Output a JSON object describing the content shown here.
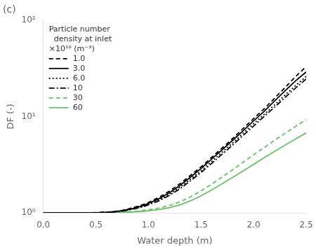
{
  "chart_data": {
    "type": "line",
    "title": "(c)",
    "xlabel": "Water depth (m)",
    "ylabel": "DF (-)",
    "legend_title": "Particle number\n  density at inlet\n×10¹⁰ (m⁻³)",
    "log": "y",
    "grid": false,
    "legend": "upper left",
    "xlim": [
      0.0,
      2.5
    ],
    "ylim": [
      1.0,
      100.0
    ],
    "xticks": [
      {
        "value": 0.0,
        "label": "0.0"
      },
      {
        "value": 0.5,
        "label": "0.5"
      },
      {
        "value": 1.0,
        "label": "1.0"
      },
      {
        "value": 1.5,
        "label": "1.5"
      },
      {
        "value": 2.0,
        "label": "2.0"
      },
      {
        "value": 2.5,
        "label": "2.5"
      }
    ],
    "yticks": [
      {
        "value": 1,
        "label": "10⁰"
      },
      {
        "value": 10,
        "label": "10¹"
      },
      {
        "value": 100,
        "label": "10²"
      }
    ],
    "x": [
      0.0,
      0.1,
      0.2,
      0.3,
      0.4,
      0.5,
      0.55,
      0.6,
      0.65,
      0.7,
      0.75,
      0.8,
      0.85,
      0.9,
      0.95,
      1.0,
      1.1,
      1.2,
      1.3,
      1.4,
      1.5,
      1.6,
      1.7,
      1.8,
      1.9,
      2.0,
      2.1,
      2.2,
      2.3,
      2.4,
      2.5
    ],
    "series": [
      {
        "name": "1.0",
        "color": "#000000",
        "line_style": "dashed",
        "values": [
          1.0,
          1.0,
          1.0,
          1.0,
          1.0,
          1.005,
          1.01,
          1.015,
          1.025,
          1.04,
          1.06,
          1.09,
          1.13,
          1.17,
          1.22,
          1.28,
          1.45,
          1.68,
          2.0,
          2.45,
          3.0,
          3.75,
          4.7,
          5.9,
          7.5,
          9.5,
          12.0,
          15.5,
          20.0,
          26.0,
          33.0
        ]
      },
      {
        "name": "3.0",
        "color": "#000000",
        "line_style": "solid",
        "values": [
          1.0,
          1.0,
          1.0,
          1.0,
          1.0,
          1.003,
          1.007,
          1.013,
          1.022,
          1.035,
          1.055,
          1.08,
          1.11,
          1.15,
          1.19,
          1.25,
          1.4,
          1.62,
          1.92,
          2.35,
          2.88,
          3.6,
          4.5,
          5.65,
          7.1,
          9.0,
          11.3,
          14.5,
          18.5,
          23.5,
          29.0
        ]
      },
      {
        "name": "6.0",
        "color": "#000000",
        "line_style": "dotted",
        "values": [
          1.0,
          1.0,
          1.0,
          1.0,
          1.0,
          1.002,
          1.005,
          1.01,
          1.018,
          1.03,
          1.047,
          1.07,
          1.1,
          1.13,
          1.17,
          1.22,
          1.36,
          1.56,
          1.84,
          2.24,
          2.73,
          3.4,
          4.25,
          5.3,
          6.7,
          8.4,
          10.5,
          13.2,
          16.7,
          21.0,
          26.0
        ]
      },
      {
        "name": "10",
        "color": "#000000",
        "line_style": "dashdot",
        "values": [
          1.0,
          1.0,
          1.0,
          1.0,
          1.0,
          1.002,
          1.004,
          1.008,
          1.015,
          1.025,
          1.04,
          1.06,
          1.09,
          1.12,
          1.16,
          1.21,
          1.33,
          1.52,
          1.78,
          2.15,
          2.62,
          3.25,
          4.05,
          5.05,
          6.35,
          7.95,
          10.0,
          12.5,
          15.8,
          19.8,
          24.5
        ]
      },
      {
        "name": "30",
        "color": "#6abf69",
        "line_style": "dashed",
        "values": [
          1.0,
          1.0,
          1.0,
          1.0,
          1.0,
          1.0,
          1.001,
          1.002,
          1.004,
          1.008,
          1.013,
          1.02,
          1.03,
          1.042,
          1.057,
          1.075,
          1.12,
          1.19,
          1.3,
          1.47,
          1.69,
          1.98,
          2.35,
          2.8,
          3.35,
          4.0,
          4.75,
          5.65,
          6.7,
          7.9,
          9.3
        ]
      },
      {
        "name": "60",
        "color": "#6abf69",
        "line_style": "solid",
        "values": [
          1.0,
          1.0,
          1.0,
          1.0,
          1.0,
          1.0,
          1.0,
          1.001,
          1.002,
          1.004,
          1.008,
          1.013,
          1.02,
          1.028,
          1.038,
          1.05,
          1.08,
          1.13,
          1.21,
          1.33,
          1.5,
          1.72,
          2.0,
          2.33,
          2.72,
          3.18,
          3.73,
          4.35,
          5.05,
          5.85,
          6.75
        ]
      }
    ]
  }
}
